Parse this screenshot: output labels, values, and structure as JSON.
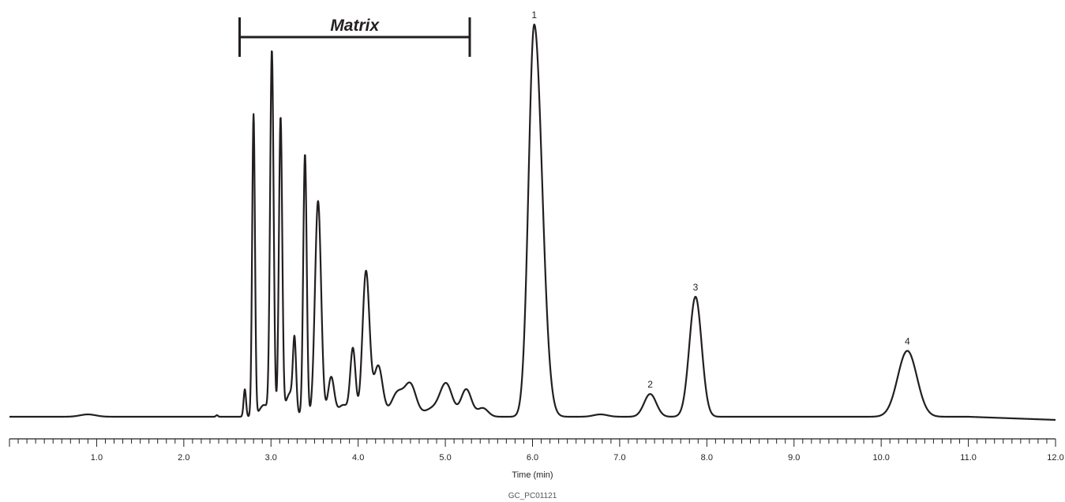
{
  "chart_data": {
    "type": "line",
    "xlabel": "Time (min)",
    "ylabel": "",
    "xlim": [
      0,
      12.0
    ],
    "ylim": [
      0,
      1.0
    ],
    "x_ticks": [
      "1.0",
      "2.0",
      "3.0",
      "4.0",
      "5.0",
      "6.0",
      "7.0",
      "8.0",
      "9.0",
      "10.0",
      "11.0",
      "12.0"
    ],
    "grid": false,
    "annotations": [
      {
        "label": "1",
        "x": 6.02,
        "y": 1.0
      },
      {
        "label": "2",
        "x": 7.35,
        "y": 0.058
      },
      {
        "label": "3",
        "x": 7.87,
        "y": 0.306
      },
      {
        "label": "4",
        "x": 10.3,
        "y": 0.168
      }
    ],
    "region": {
      "label": "Matrix",
      "x_start": 2.64,
      "x_end": 5.28
    },
    "series": [
      {
        "peaks": [
          {
            "x": 0.9,
            "y": 0.006,
            "w": 0.09
          },
          {
            "x": 2.38,
            "y": 0.004,
            "w": 0.012
          },
          {
            "x": 2.7,
            "y": 0.07,
            "w": 0.014
          },
          {
            "x": 2.8,
            "y": 0.77,
            "w": 0.016
          },
          {
            "x": 2.92,
            "y": 0.03,
            "w": 0.05
          },
          {
            "x": 3.01,
            "y": 0.93,
            "w": 0.02
          },
          {
            "x": 3.11,
            "y": 0.76,
            "w": 0.019
          },
          {
            "x": 3.22,
            "y": 0.06,
            "w": 0.05
          },
          {
            "x": 3.27,
            "y": 0.17,
            "w": 0.018
          },
          {
            "x": 3.39,
            "y": 0.67,
            "w": 0.02
          },
          {
            "x": 3.54,
            "y": 0.55,
            "w": 0.035
          },
          {
            "x": 3.69,
            "y": 0.1,
            "w": 0.035
          },
          {
            "x": 3.83,
            "y": 0.03,
            "w": 0.06
          },
          {
            "x": 3.94,
            "y": 0.17,
            "w": 0.03
          },
          {
            "x": 4.09,
            "y": 0.37,
            "w": 0.04
          },
          {
            "x": 4.23,
            "y": 0.13,
            "w": 0.05
          },
          {
            "x": 4.45,
            "y": 0.06,
            "w": 0.07
          },
          {
            "x": 4.6,
            "y": 0.08,
            "w": 0.065
          },
          {
            "x": 4.85,
            "y": 0.02,
            "w": 0.09
          },
          {
            "x": 5.01,
            "y": 0.082,
            "w": 0.07
          },
          {
            "x": 5.24,
            "y": 0.07,
            "w": 0.06
          },
          {
            "x": 5.43,
            "y": 0.022,
            "w": 0.06
          },
          {
            "x": 6.02,
            "y": 1.0,
            "w": 0.065,
            "tail": 0.09
          },
          {
            "x": 6.78,
            "y": 0.006,
            "w": 0.08
          },
          {
            "x": 7.35,
            "y": 0.058,
            "w": 0.07
          },
          {
            "x": 7.87,
            "y": 0.306,
            "w": 0.07
          },
          {
            "x": 10.3,
            "y": 0.168,
            "w": 0.11
          }
        ]
      }
    ]
  },
  "caption": "GC_PC01121",
  "colors": {
    "trace": "#231f20",
    "background": "#ffffff"
  }
}
